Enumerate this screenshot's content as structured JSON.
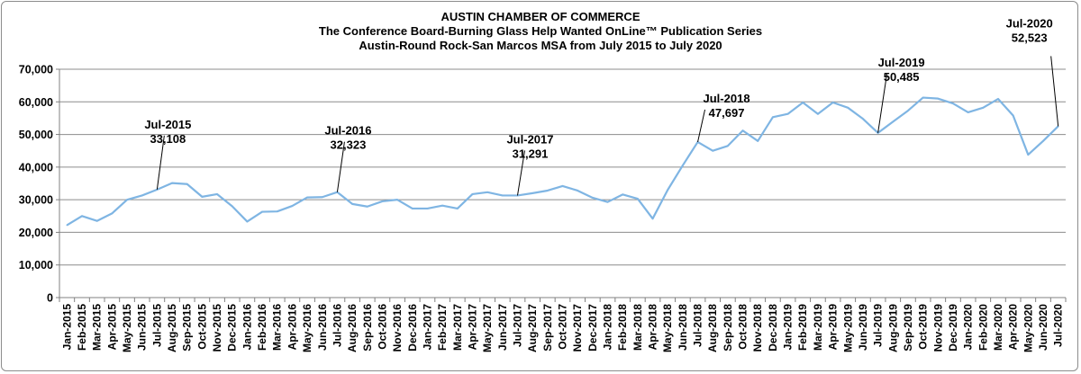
{
  "chart_data": {
    "type": "line",
    "title": "AUSTIN CHAMBER OF COMMERCE",
    "subtitle_1": "The Conference Board-Burning Glass Help Wanted OnLine™ Publication Series",
    "subtitle_2": "Austin-Round Rock-San Marcos MSA from July 2015 to July 2020",
    "xlabel": "",
    "ylabel": "",
    "ylim": [
      0,
      70000
    ],
    "yticks": [
      0,
      10000,
      20000,
      30000,
      40000,
      50000,
      60000,
      70000
    ],
    "ytick_labels": [
      "0",
      "10,000",
      "20,000",
      "30,000",
      "40,000",
      "50,000",
      "60,000",
      "70,000"
    ],
    "grid": "horizontal",
    "line_color": "#7FB5E3",
    "categories": [
      "Jan-2015",
      "Feb-2015",
      "Mar-2015",
      "Apr-2015",
      "May-2015",
      "Jun-2015",
      "Jul-2015",
      "Aug-2015",
      "Sep-2015",
      "Oct-2015",
      "Nov-2015",
      "Dec-2015",
      "Jan-2016",
      "Feb-2016",
      "Mar-2016",
      "Apr-2016",
      "May-2016",
      "Jun-2016",
      "Jul-2016",
      "Aug-2016",
      "Sep-2016",
      "Oct-2016",
      "Nov-2016",
      "Dec-2016",
      "Jan-2017",
      "Feb-2017",
      "Mar-2017",
      "Apr-2017",
      "May-2017",
      "Jun-2017",
      "Jul-2017",
      "Aug-2017",
      "Sep-2017",
      "Oct-2017",
      "Nov-2017",
      "Dec-2017",
      "Jan-2018",
      "Feb-2018",
      "Mar-2018",
      "Apr-2018",
      "May-2018",
      "Jun-2018",
      "Jul-2018",
      "Aug-2018",
      "Sep-2018",
      "Oct-2018",
      "Nov-2018",
      "Dec-2018",
      "Jan-2019",
      "Feb-2019",
      "Mar-2019",
      "Apr-2019",
      "May-2019",
      "Jun-2019",
      "Jul-2019",
      "Aug-2019",
      "Sep-2019",
      "Oct-2019",
      "Nov-2019",
      "Dec-2019",
      "Jan-2020",
      "Feb-2020",
      "Mar-2020",
      "Apr-2020",
      "May-2020",
      "Jun-2020",
      "Jul-2020"
    ],
    "values": [
      22200,
      25000,
      23500,
      25800,
      30000,
      31300,
      33108,
      35100,
      34800,
      30900,
      31700,
      28000,
      23300,
      26300,
      26400,
      28100,
      30700,
      30800,
      32323,
      28700,
      27900,
      29500,
      30000,
      27300,
      27300,
      28200,
      27300,
      31700,
      32300,
      31300,
      31291,
      32000,
      32800,
      34200,
      32800,
      30600,
      29300,
      31600,
      30300,
      24200,
      33000,
      40500,
      47697,
      45000,
      46500,
      51200,
      48000,
      55300,
      56300,
      59800,
      56300,
      59800,
      58200,
      54800,
      50485,
      53900,
      57300,
      61300,
      61000,
      59500,
      56800,
      58200,
      60900,
      55800,
      43800,
      48000,
      52523
    ],
    "annotations": [
      {
        "category": "Jul-2015",
        "label": "Jul-2015",
        "value_label": "33,108"
      },
      {
        "category": "Jul-2016",
        "label": "Jul-2016",
        "value_label": "32,323"
      },
      {
        "category": "Jul-2017",
        "label": "Jul-2017",
        "value_label": "31,291"
      },
      {
        "category": "Jul-2018",
        "label": "Jul-2018",
        "value_label": "47,697"
      },
      {
        "category": "Jul-2019",
        "label": "Jul-2019",
        "value_label": "50,485"
      },
      {
        "category": "Jul-2020",
        "label": "Jul-2020",
        "value_label": "52,523"
      }
    ]
  }
}
